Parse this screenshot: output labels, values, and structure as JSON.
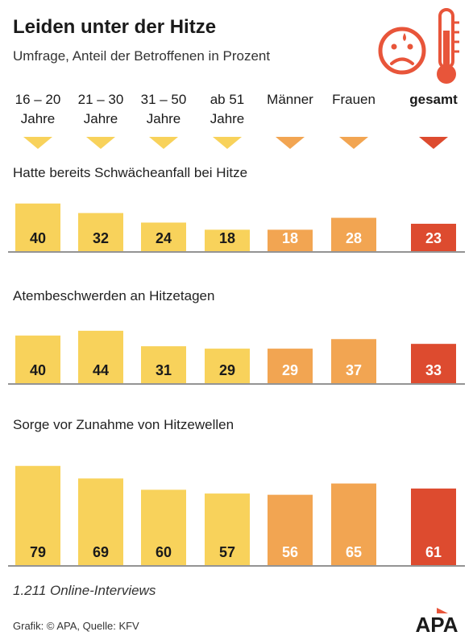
{
  "header": {
    "title": "Leiden unter der Hitze",
    "subtitle": "Umfrage, Anteil der Betroffenen in Prozent"
  },
  "icons": [
    "sad-face-icon",
    "thermometer-icon"
  ],
  "columns": [
    {
      "line1": "16 – 20",
      "line2": "Jahre",
      "group": "age"
    },
    {
      "line1": "21 – 30",
      "line2": "Jahre",
      "group": "age"
    },
    {
      "line1": "31 – 50",
      "line2": "Jahre",
      "group": "age"
    },
    {
      "line1": "ab 51",
      "line2": "Jahre",
      "group": "age"
    },
    {
      "line1": "",
      "line2": "Männer",
      "group": "gender"
    },
    {
      "line1": "",
      "line2": "Frauen",
      "group": "gender"
    },
    {
      "line1": "",
      "line2": "gesamt",
      "group": "total"
    }
  ],
  "colors": {
    "age": "#f8d25b",
    "gender": "#f2a552",
    "total": "#dd4b2f",
    "accent": "#e8553a"
  },
  "chart_data": [
    {
      "type": "bar",
      "title": "Hatte bereits Schwächeanfall bei Hitze",
      "categories": [
        "16 – 20 Jahre",
        "21 – 30 Jahre",
        "31 – 50 Jahre",
        "ab 51 Jahre",
        "Männer",
        "Frauen",
        "gesamt"
      ],
      "values": [
        40,
        32,
        24,
        18,
        18,
        28,
        23
      ]
    },
    {
      "type": "bar",
      "title": "Atembeschwerden an Hitzetagen",
      "categories": [
        "16 – 20 Jahre",
        "21 – 30 Jahre",
        "31 – 50 Jahre",
        "ab 51 Jahre",
        "Männer",
        "Frauen",
        "gesamt"
      ],
      "values": [
        40,
        44,
        31,
        29,
        29,
        37,
        33
      ]
    },
    {
      "type": "bar",
      "title": "Sorge vor Zunahme von Hitzewellen",
      "categories": [
        "16 – 20 Jahre",
        "21 – 30 Jahre",
        "31 – 50 Jahre",
        "ab 51 Jahre",
        "Männer",
        "Frauen",
        "gesamt"
      ],
      "values": [
        79,
        69,
        60,
        57,
        56,
        65,
        61
      ]
    }
  ],
  "footer": {
    "note": "1.211 Online-Interviews",
    "source": "Grafik: © APA, Quelle: KFV",
    "logo": "APA"
  }
}
